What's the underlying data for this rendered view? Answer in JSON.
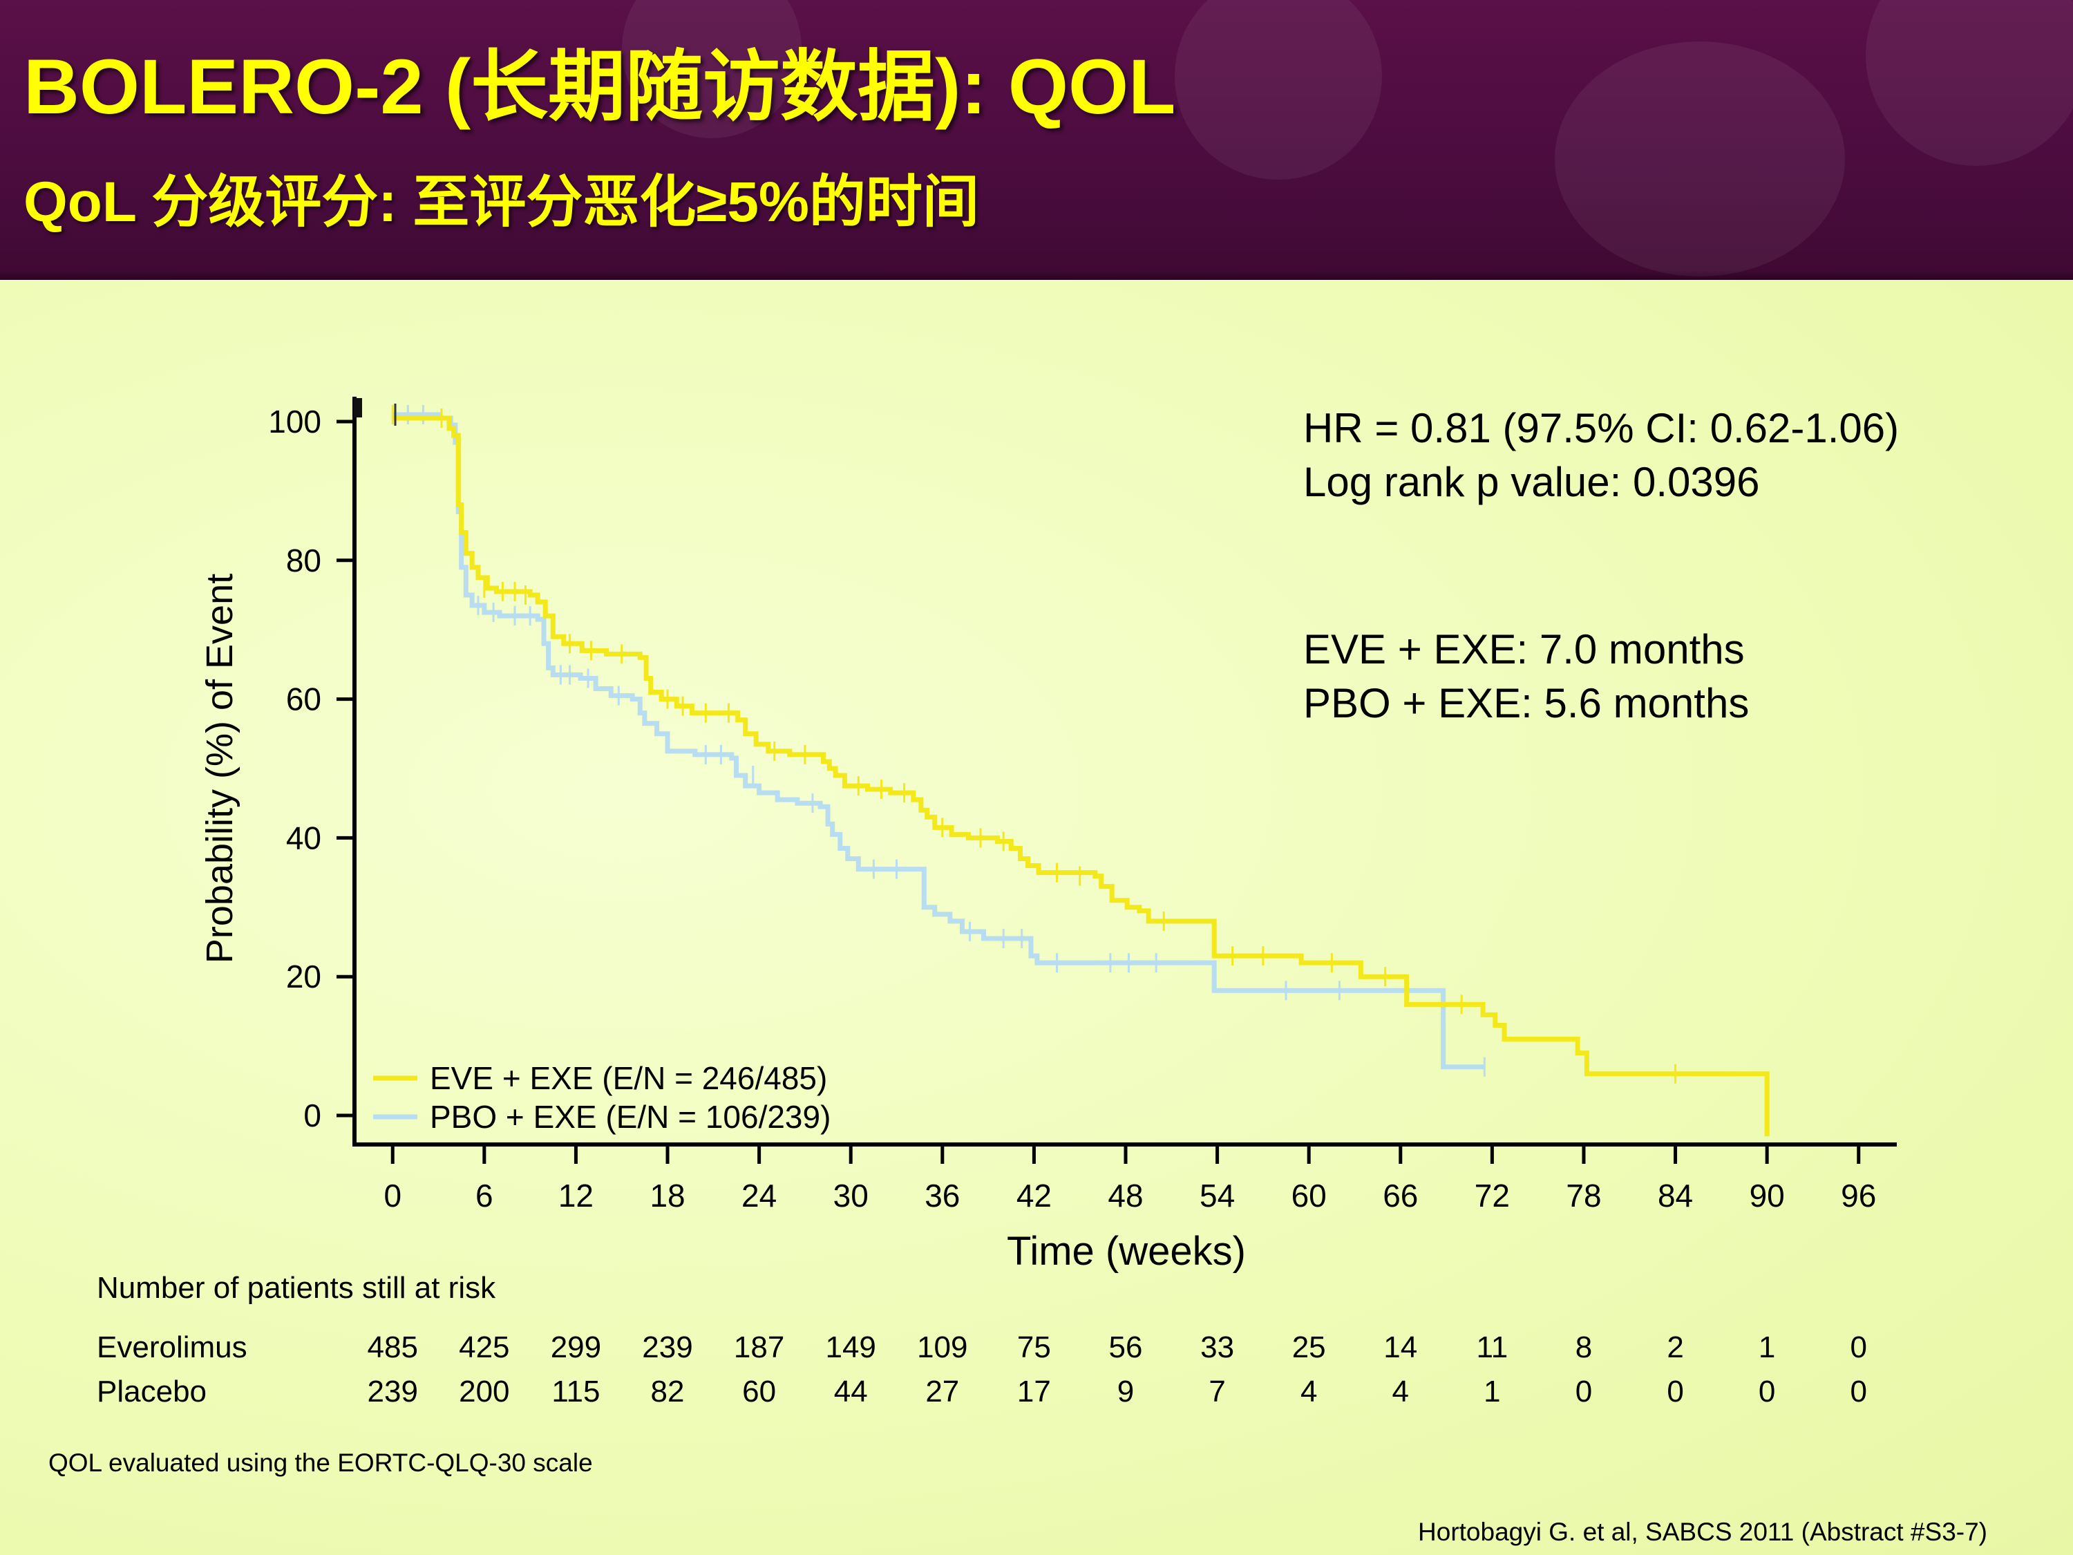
{
  "slide": {
    "title": "BOLERO-2 (长期随访数据): QOL",
    "subtitle": "QoL 分级评分: 至评分恶化≥5%的时间",
    "stats": {
      "hr": "HR = 0.81 (97.5% CI: 0.62-1.06)",
      "logrank": "Log rank p value: 0.0396",
      "median_eve": "EVE + EXE: 7.0 months",
      "median_pbo": "PBO + EXE: 5.6 months"
    },
    "footnote": "QOL evaluated using the EORTC-QLQ-30 scale",
    "citation": "Hortobagyi G. et al, SABCS  2011 (Abstract #S3-7)"
  },
  "risk_table": {
    "title": "Number of patients still at risk",
    "rows": [
      {
        "label": "Everolimus",
        "values": [
          "485",
          "425",
          "299",
          "239",
          "187",
          "149",
          "109",
          "75",
          "56",
          "33",
          "25",
          "14",
          "11",
          "8",
          "2",
          "1",
          "0"
        ]
      },
      {
        "label": "Placebo",
        "values": [
          "239",
          "200",
          "115",
          "82",
          "60",
          "44",
          "27",
          "17",
          "9",
          "7",
          "4",
          "4",
          "1",
          "0",
          "0",
          "0",
          "0"
        ]
      }
    ]
  },
  "chart_data": {
    "type": "line",
    "title": "",
    "xlabel": "Time (weeks)",
    "ylabel": "Probability (%) of Event",
    "xlim": [
      -2.5,
      98.5
    ],
    "ylim": [
      0,
      100
    ],
    "xticks": [
      0,
      6,
      12,
      18,
      24,
      30,
      36,
      42,
      48,
      54,
      60,
      66,
      72,
      78,
      84,
      90,
      96
    ],
    "yticks": [
      0,
      20,
      40,
      60,
      80,
      100
    ],
    "legend_position": "bottom-left",
    "series": [
      {
        "name": "EVE + EXE (E/N = 246/485)",
        "color": "#f2e81c",
        "steps": [
          [
            0,
            100.5
          ],
          [
            3,
            100.5
          ],
          [
            3.7,
            99
          ],
          [
            4,
            98
          ],
          [
            4.3,
            88
          ],
          [
            4.5,
            84
          ],
          [
            4.8,
            81
          ],
          [
            5.2,
            79
          ],
          [
            5.6,
            77.5
          ],
          [
            6.2,
            76
          ],
          [
            6.8,
            75.5
          ],
          [
            9,
            75
          ],
          [
            9.5,
            74
          ],
          [
            10,
            72
          ],
          [
            10.5,
            69
          ],
          [
            11.2,
            68
          ],
          [
            12.4,
            67
          ],
          [
            14,
            66.5
          ],
          [
            16.2,
            66
          ],
          [
            16.6,
            63
          ],
          [
            16.9,
            61
          ],
          [
            17.6,
            60
          ],
          [
            18.6,
            59
          ],
          [
            19.6,
            58
          ],
          [
            22.6,
            57
          ],
          [
            23.1,
            55
          ],
          [
            23.8,
            53.5
          ],
          [
            24.6,
            52.5
          ],
          [
            26,
            52
          ],
          [
            28.2,
            51
          ],
          [
            28.6,
            50
          ],
          [
            29,
            49
          ],
          [
            29.6,
            47.5
          ],
          [
            31.1,
            47
          ],
          [
            32.6,
            46.5
          ],
          [
            34.1,
            45.5
          ],
          [
            34.6,
            44
          ],
          [
            35,
            43
          ],
          [
            35.5,
            41.5
          ],
          [
            36.6,
            40.5
          ],
          [
            37.7,
            40
          ],
          [
            39.6,
            39.5
          ],
          [
            40.5,
            38.5
          ],
          [
            41.1,
            37
          ],
          [
            41.6,
            36
          ],
          [
            42.3,
            35
          ],
          [
            46,
            34.5
          ],
          [
            46.4,
            33
          ],
          [
            47.1,
            31
          ],
          [
            48.1,
            30
          ],
          [
            48.9,
            29.5
          ],
          [
            49.5,
            28
          ],
          [
            53.5,
            28
          ],
          [
            53.8,
            23
          ],
          [
            58,
            23
          ],
          [
            59.5,
            22
          ],
          [
            63,
            22
          ],
          [
            63.4,
            20
          ],
          [
            66,
            20
          ],
          [
            66.4,
            16
          ],
          [
            71,
            16
          ],
          [
            71.4,
            14.5
          ],
          [
            72.2,
            13
          ],
          [
            72.8,
            11
          ],
          [
            77.2,
            11
          ],
          [
            77.6,
            9
          ],
          [
            78.2,
            6
          ],
          [
            90,
            6
          ],
          [
            90,
            -3
          ]
        ],
        "censor": [
          [
            0,
            101
          ],
          [
            3.2,
            100.5
          ],
          [
            6,
            76
          ],
          [
            7.2,
            75.5
          ],
          [
            8,
            75.5
          ],
          [
            8.7,
            75
          ],
          [
            11.6,
            68
          ],
          [
            13,
            67
          ],
          [
            15,
            66.5
          ],
          [
            18,
            60
          ],
          [
            19,
            59
          ],
          [
            20.5,
            58
          ],
          [
            22,
            58
          ],
          [
            25,
            52.5
          ],
          [
            27,
            52
          ],
          [
            30.5,
            47.5
          ],
          [
            32,
            47
          ],
          [
            33.5,
            46.5
          ],
          [
            36,
            41.5
          ],
          [
            38.5,
            40
          ],
          [
            40,
            39.5
          ],
          [
            43.5,
            35
          ],
          [
            45,
            34.5
          ],
          [
            50.5,
            28
          ],
          [
            55,
            23
          ],
          [
            57,
            23
          ],
          [
            61.5,
            22
          ],
          [
            65,
            20
          ],
          [
            70,
            16
          ],
          [
            84,
            6
          ]
        ]
      },
      {
        "name": "PBO + EXE (E/N = 106/239)",
        "color": "#b8dcf0",
        "steps": [
          [
            0,
            101
          ],
          [
            2.3,
            101
          ],
          [
            3.1,
            100.5
          ],
          [
            3.8,
            99.5
          ],
          [
            4.1,
            97
          ],
          [
            4.3,
            87
          ],
          [
            4.5,
            79
          ],
          [
            4.8,
            75
          ],
          [
            5.2,
            73.5
          ],
          [
            6,
            72.5
          ],
          [
            7,
            72
          ],
          [
            9.5,
            71.5
          ],
          [
            9.9,
            68
          ],
          [
            10.2,
            64.5
          ],
          [
            10.5,
            63.5
          ],
          [
            12.3,
            63
          ],
          [
            13.3,
            61.5
          ],
          [
            14.3,
            60.5
          ],
          [
            15.7,
            60
          ],
          [
            16.2,
            58
          ],
          [
            16.5,
            56.5
          ],
          [
            17.3,
            55
          ],
          [
            18,
            52.5
          ],
          [
            19.8,
            52
          ],
          [
            22.2,
            51.5
          ],
          [
            22.5,
            49
          ],
          [
            23.1,
            47.5
          ],
          [
            24,
            46.5
          ],
          [
            25.2,
            45.5
          ],
          [
            26.5,
            45
          ],
          [
            28,
            44.5
          ],
          [
            28.5,
            42
          ],
          [
            28.8,
            40.5
          ],
          [
            29.3,
            38.5
          ],
          [
            29.8,
            37
          ],
          [
            30.5,
            35.5
          ],
          [
            34.5,
            35.5
          ],
          [
            34.8,
            30
          ],
          [
            35.5,
            29
          ],
          [
            36.5,
            28
          ],
          [
            37.3,
            26.5
          ],
          [
            38.7,
            25.5
          ],
          [
            41.5,
            25.5
          ],
          [
            41.8,
            23
          ],
          [
            42.2,
            22
          ],
          [
            53.5,
            22
          ],
          [
            53.8,
            18
          ],
          [
            68.5,
            18
          ],
          [
            68.8,
            7
          ],
          [
            71.5,
            7
          ]
        ],
        "censor": [
          [
            1,
            101
          ],
          [
            2,
            101
          ],
          [
            5.6,
            73.5
          ],
          [
            6.6,
            72.5
          ],
          [
            8,
            72
          ],
          [
            9,
            72
          ],
          [
            11,
            63.5
          ],
          [
            11.6,
            63.5
          ],
          [
            12.8,
            63
          ],
          [
            14.8,
            60.5
          ],
          [
            20.5,
            52
          ],
          [
            21.5,
            52
          ],
          [
            23.6,
            49
          ],
          [
            27.5,
            45
          ],
          [
            31.5,
            35.5
          ],
          [
            33,
            35.5
          ],
          [
            37.8,
            26.5
          ],
          [
            40,
            25.5
          ],
          [
            41.2,
            25.5
          ],
          [
            43.5,
            22
          ],
          [
            47,
            22
          ],
          [
            48.2,
            22
          ],
          [
            50,
            22
          ],
          [
            58.5,
            18
          ],
          [
            62,
            18
          ],
          [
            66.5,
            18
          ],
          [
            71.5,
            7
          ]
        ]
      }
    ]
  }
}
